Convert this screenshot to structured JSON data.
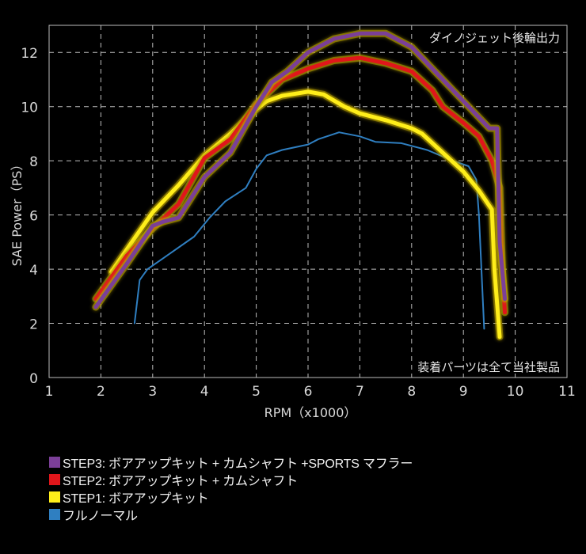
{
  "chart_data": {
    "type": "line",
    "title": "",
    "xlabel": "RPM（x1000）",
    "ylabel": "SAE Power（PS）",
    "xlim": [
      1,
      11
    ],
    "ylim": [
      0,
      13
    ],
    "x_ticks": [
      1,
      2,
      3,
      4,
      5,
      6,
      7,
      8,
      9,
      10,
      11
    ],
    "y_ticks": [
      0,
      2,
      4,
      6,
      8,
      10,
      12
    ],
    "grid": true,
    "legend_position": "bottom",
    "annotations": [
      "ダイノジェット後輪出力",
      "装着パーツは全て当社製品"
    ],
    "series": [
      {
        "name": "STEP3: ボアアップキット + カムシャフト +SPORTS マフラー",
        "color": "#7b3f98",
        "width": 5,
        "x": [
          1.9,
          2.5,
          3.0,
          3.2,
          3.5,
          4.0,
          4.5,
          5.0,
          5.3,
          5.6,
          6.0,
          6.5,
          7.0,
          7.5,
          8.0,
          8.5,
          9.0,
          9.3,
          9.5,
          9.65,
          9.7,
          9.8
        ],
        "values": [
          2.6,
          4.2,
          5.6,
          5.75,
          5.9,
          7.4,
          8.3,
          10.0,
          10.9,
          11.3,
          12.0,
          12.5,
          12.7,
          12.7,
          12.2,
          11.2,
          10.2,
          9.6,
          9.2,
          9.2,
          5.0,
          2.9
        ]
      },
      {
        "name": "STEP2: ボアアップキット + カムシャフト",
        "color": "#e0161b",
        "width": 5,
        "x": [
          1.9,
          2.5,
          3.0,
          3.5,
          4.0,
          4.5,
          5.0,
          5.5,
          6.0,
          6.5,
          7.0,
          7.5,
          8.0,
          8.4,
          8.6,
          9.0,
          9.3,
          9.55,
          9.7,
          9.75,
          9.8
        ],
        "values": [
          2.9,
          4.5,
          5.5,
          6.4,
          8.1,
          8.8,
          10.1,
          11.0,
          11.4,
          11.7,
          11.8,
          11.6,
          11.3,
          10.6,
          10.0,
          9.4,
          8.9,
          8.0,
          7.0,
          4.0,
          2.4
        ]
      },
      {
        "name": "STEP1: ボアアップキット",
        "color": "#ffee1a",
        "width": 5,
        "x": [
          2.2,
          2.6,
          3.0,
          3.5,
          4.0,
          4.5,
          5.0,
          5.2,
          5.5,
          6.0,
          6.3,
          6.7,
          7.0,
          7.5,
          8.0,
          8.2,
          8.6,
          9.0,
          9.3,
          9.55,
          9.6,
          9.7
        ],
        "values": [
          3.9,
          5.0,
          6.1,
          7.1,
          8.2,
          9.0,
          9.9,
          10.2,
          10.4,
          10.55,
          10.45,
          10.0,
          9.75,
          9.5,
          9.2,
          9.0,
          8.3,
          7.6,
          6.9,
          6.2,
          4.0,
          1.5
        ]
      },
      {
        "name": "フルノーマル",
        "color": "#2f7fc1",
        "width": 2,
        "x": [
          2.65,
          2.75,
          2.9,
          3.2,
          3.8,
          4.1,
          4.4,
          4.8,
          5.0,
          5.2,
          5.5,
          6.0,
          6.2,
          6.6,
          7.0,
          7.3,
          7.8,
          8.3,
          8.8,
          9.1,
          9.25,
          9.3,
          9.4
        ],
        "values": [
          2.0,
          3.6,
          4.0,
          4.4,
          5.2,
          5.9,
          6.5,
          7.0,
          7.7,
          8.2,
          8.4,
          8.6,
          8.8,
          9.05,
          8.9,
          8.7,
          8.65,
          8.4,
          8.0,
          7.8,
          7.3,
          6.0,
          1.8
        ]
      }
    ]
  },
  "legend": {
    "items": [
      {
        "label": "STEP3: ボアアップキット + カムシャフト +SPORTS マフラー",
        "color": "#7b3f98"
      },
      {
        "label": "STEP2: ボアアップキット + カムシャフト",
        "color": "#e0161b"
      },
      {
        "label": "STEP1: ボアアップキット",
        "color": "#ffee1a"
      },
      {
        "label": "フルノーマル",
        "color": "#2f7fc1"
      }
    ]
  },
  "colors": {
    "background": "#000000",
    "grid": "#bdbdbd",
    "axis": "#bdbdbd",
    "glow": "#b8a000"
  }
}
